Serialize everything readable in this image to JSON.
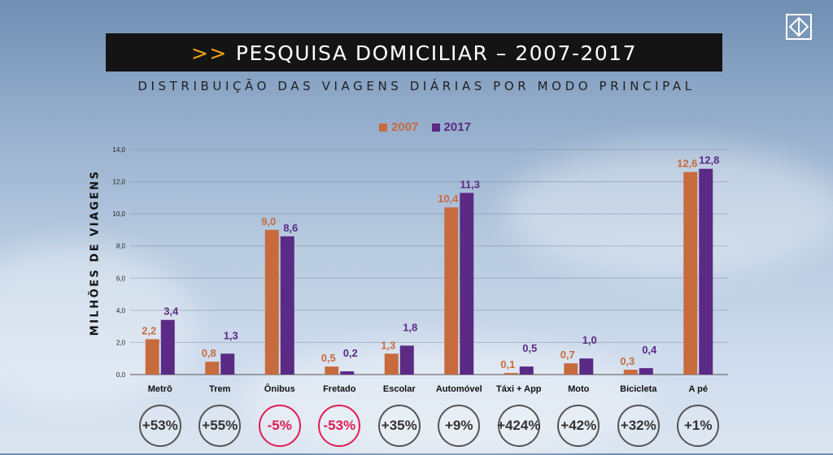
{
  "header": {
    "arrow": ">>",
    "title": "PESQUISA DOMICILIAR – 2007-2017",
    "subtitle": "DISTRIBUIÇÃO DAS VIAGENS DIÁRIAS POR MODO PRINCIPAL",
    "logo_icon": "metro-logo-icon"
  },
  "colors": {
    "s2007": "#c76b3e",
    "s2017": "#5a2a84",
    "negative": "#e01c52"
  },
  "chart_data": {
    "type": "bar",
    "ylabel": "MILHÕES DE VIAGENS",
    "ylim": [
      0,
      14
    ],
    "yticks": [
      "0,0",
      "2,0",
      "4,0",
      "6,0",
      "8,0",
      "10,0",
      "12,0",
      "14,0"
    ],
    "grid": true,
    "legend_position": "top-center",
    "categories": [
      "Metrô",
      "Trem",
      "Ônibus",
      "Fretado",
      "Escolar",
      "Automóvel",
      "Táxi + App",
      "Moto",
      "Bicicleta",
      "A pé"
    ],
    "series": [
      {
        "name": "2007",
        "values": [
          2.2,
          0.8,
          9.0,
          0.5,
          1.3,
          10.4,
          0.1,
          0.7,
          0.3,
          12.6
        ],
        "labels": [
          "2,2",
          "0,8",
          "9,0",
          "0,5",
          "1,3",
          "10,4",
          "0,1",
          "0,7",
          "0,3",
          "12,6"
        ]
      },
      {
        "name": "2017",
        "values": [
          3.4,
          1.3,
          8.6,
          0.2,
          1.8,
          11.3,
          0.5,
          1.0,
          0.4,
          12.8
        ],
        "labels": [
          "3,4",
          "1,3",
          "8,6",
          "0,2",
          "1,8",
          "11,3",
          "0,5",
          "1,0",
          "0,4",
          "12,8"
        ]
      }
    ],
    "changes": [
      "+53%",
      "+55%",
      "-5%",
      "-53%",
      "+35%",
      "+9%",
      "+424%",
      "+42%",
      "+32%",
      "+1%"
    ]
  }
}
